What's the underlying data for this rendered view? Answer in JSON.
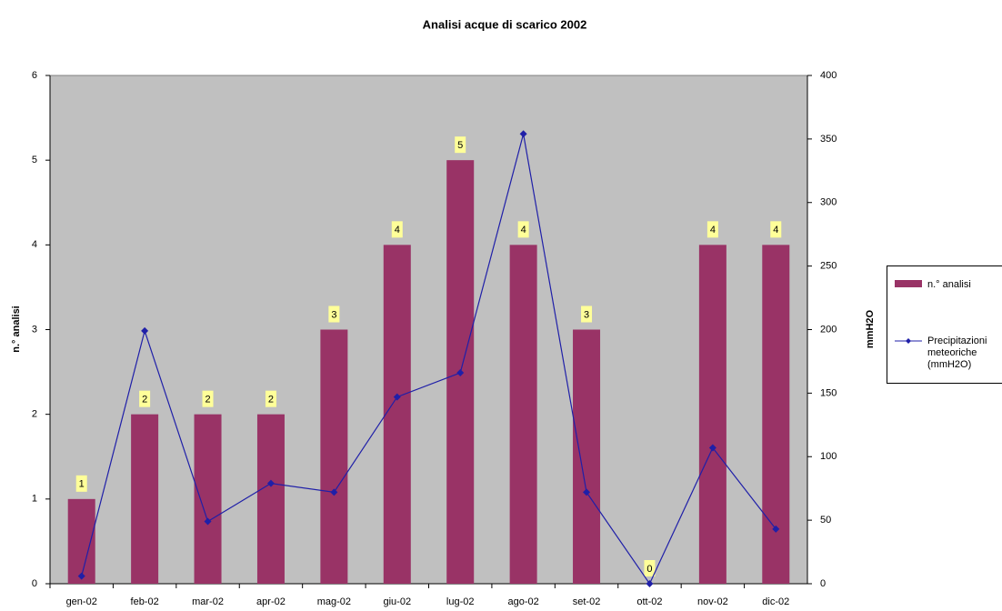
{
  "chart_data": {
    "type": "bar",
    "title": "Analisi acque di scarico 2002",
    "categories": [
      "gen-02",
      "feb-02",
      "mar-02",
      "apr-02",
      "mag-02",
      "giu-02",
      "lug-02",
      "ago-02",
      "set-02",
      "ott-02",
      "nov-02",
      "dic-02"
    ],
    "y_label": "n.° analisi",
    "y2_label": "mmH2O",
    "ylim": [
      0,
      6
    ],
    "yticks": [
      0,
      1,
      2,
      3,
      4,
      5,
      6
    ],
    "y2lim": [
      0,
      400
    ],
    "y2ticks": [
      0,
      50,
      100,
      150,
      200,
      250,
      300,
      350,
      400
    ],
    "series": [
      {
        "name": "n.° analisi",
        "color": "#993366",
        "type": "bar",
        "values": [
          1,
          2,
          2,
          2,
          3,
          4,
          5,
          4,
          3,
          0,
          4,
          4
        ]
      },
      {
        "name": "Precipitazioni meteoriche (mmH2O)",
        "color": "#1f1fa8",
        "type": "line",
        "axis": "y2",
        "values": [
          6,
          199,
          49,
          79,
          72,
          147,
          166,
          354,
          72,
          0,
          107,
          43
        ]
      }
    ],
    "background": "#c0c0c0",
    "label_color": "#ffff99"
  }
}
